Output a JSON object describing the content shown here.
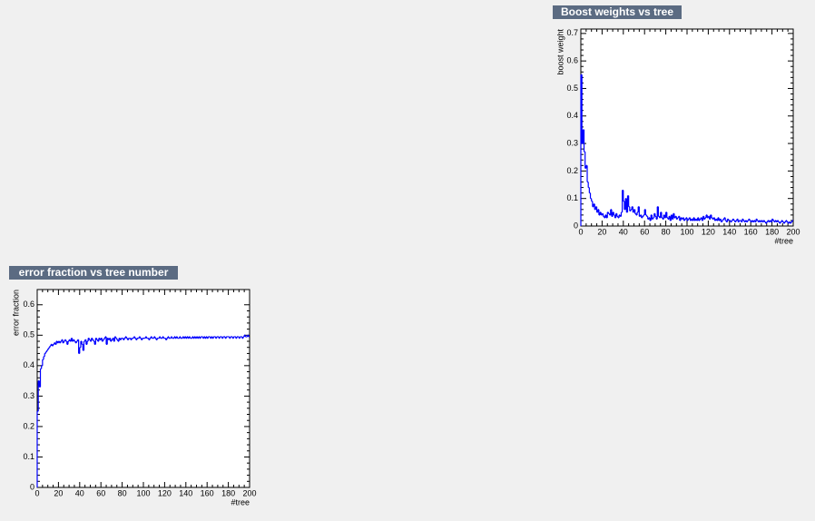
{
  "chart_data": [
    {
      "type": "step",
      "title": "Boost weights vs tree",
      "x_label": "#tree",
      "y_label": "boost weight",
      "color": "#0000ff",
      "xlim": [
        0,
        200
      ],
      "xticks": [
        0,
        20,
        40,
        60,
        80,
        100,
        120,
        140,
        160,
        180,
        200
      ],
      "ylim": [
        0,
        0.716
      ],
      "yticks": [
        0,
        0.1,
        0.2,
        0.3,
        0.4,
        0.5,
        0.6,
        0.7
      ],
      "grid": false,
      "values": [
        0.55,
        0.3,
        0.35,
        0.27,
        0.21,
        0.22,
        0.16,
        0.14,
        0.12,
        0.1,
        0.09,
        0.07,
        0.08,
        0.06,
        0.07,
        0.05,
        0.06,
        0.04,
        0.05,
        0.04,
        0.045,
        0.035,
        0.03,
        0.04,
        0.03,
        0.05,
        0.045,
        0.04,
        0.06,
        0.035,
        0.05,
        0.04,
        0.03,
        0.045,
        0.035,
        0.03,
        0.04,
        0.035,
        0.05,
        0.13,
        0.09,
        0.06,
        0.1,
        0.05,
        0.11,
        0.07,
        0.055,
        0.06,
        0.07,
        0.05,
        0.06,
        0.045,
        0.04,
        0.05,
        0.07,
        0.035,
        0.04,
        0.03,
        0.035,
        0.04,
        0.06,
        0.04,
        0.035,
        0.025,
        0.03,
        0.02,
        0.04,
        0.025,
        0.03,
        0.045,
        0.035,
        0.025,
        0.07,
        0.035,
        0.03,
        0.05,
        0.03,
        0.025,
        0.04,
        0.03,
        0.05,
        0.03,
        0.025,
        0.035,
        0.02,
        0.04,
        0.025,
        0.045,
        0.03,
        0.035,
        0.025,
        0.03,
        0.035,
        0.02,
        0.03,
        0.025,
        0.03,
        0.02,
        0.025,
        0.03,
        0.02,
        0.025,
        0.03,
        0.02,
        0.025,
        0.02,
        0.03,
        0.02,
        0.025,
        0.02,
        0.03,
        0.02,
        0.025,
        0.03,
        0.02,
        0.035,
        0.025,
        0.03,
        0.04,
        0.03,
        0.035,
        0.025,
        0.04,
        0.03,
        0.025,
        0.03,
        0.02,
        0.025,
        0.02,
        0.03,
        0.02,
        0.025,
        0.015,
        0.02,
        0.025,
        0.03,
        0.02,
        0.015,
        0.025,
        0.02,
        0.02,
        0.015,
        0.02,
        0.025,
        0.02,
        0.015,
        0.02,
        0.025,
        0.015,
        0.02,
        0.02,
        0.015,
        0.025,
        0.02,
        0.015,
        0.02,
        0.015,
        0.02,
        0.025,
        0.02,
        0.015,
        0.02,
        0.015,
        0.02,
        0.015,
        0.025,
        0.02,
        0.015,
        0.02,
        0.015,
        0.02,
        0.015,
        0.02,
        0.015,
        0.01,
        0.015,
        0.02,
        0.015,
        0.02,
        0.015,
        0.025,
        0.02,
        0.015,
        0.02,
        0.015,
        0.02,
        0.015,
        0.01,
        0.015,
        0.02,
        0.015,
        0.01,
        0.015,
        0.02,
        0.015,
        0.01,
        0.015,
        0.01,
        0.015,
        0.02
      ]
    },
    {
      "type": "step",
      "title": "error fraction vs tree number",
      "x_label": "#tree",
      "y_label": "error fraction",
      "color": "#0000ff",
      "xlim": [
        0,
        200
      ],
      "xticks": [
        0,
        20,
        40,
        60,
        80,
        100,
        120,
        140,
        160,
        180,
        200
      ],
      "ylim": [
        0,
        0.65
      ],
      "yticks": [
        0,
        0.1,
        0.2,
        0.3,
        0.4,
        0.5,
        0.6
      ],
      "grid": false,
      "values": [
        0.25,
        0.35,
        0.33,
        0.39,
        0.4,
        0.42,
        0.43,
        0.44,
        0.445,
        0.45,
        0.455,
        0.46,
        0.465,
        0.47,
        0.465,
        0.47,
        0.475,
        0.47,
        0.48,
        0.475,
        0.48,
        0.475,
        0.48,
        0.485,
        0.475,
        0.48,
        0.485,
        0.48,
        0.47,
        0.48,
        0.485,
        0.48,
        0.49,
        0.48,
        0.485,
        0.48,
        0.475,
        0.48,
        0.485,
        0.44,
        0.46,
        0.48,
        0.47,
        0.45,
        0.48,
        0.485,
        0.47,
        0.48,
        0.49,
        0.485,
        0.48,
        0.49,
        0.485,
        0.48,
        0.47,
        0.49,
        0.485,
        0.48,
        0.49,
        0.485,
        0.49,
        0.48,
        0.485,
        0.49,
        0.495,
        0.47,
        0.49,
        0.485,
        0.49,
        0.48,
        0.485,
        0.49,
        0.48,
        0.495,
        0.49,
        0.485,
        0.48,
        0.49,
        0.485,
        0.49,
        0.49,
        0.485,
        0.49,
        0.495,
        0.49,
        0.485,
        0.49,
        0.49,
        0.485,
        0.49,
        0.49,
        0.495,
        0.49,
        0.485,
        0.49,
        0.49,
        0.495,
        0.49,
        0.485,
        0.49,
        0.49,
        0.49,
        0.495,
        0.49,
        0.49,
        0.485,
        0.49,
        0.495,
        0.49,
        0.49,
        0.495,
        0.49,
        0.485,
        0.49,
        0.49,
        0.495,
        0.49,
        0.49,
        0.495,
        0.49,
        0.49,
        0.485,
        0.49,
        0.495,
        0.49,
        0.49,
        0.495,
        0.49,
        0.49,
        0.495,
        0.49,
        0.495,
        0.49,
        0.49,
        0.495,
        0.49,
        0.49,
        0.495,
        0.49,
        0.495,
        0.49,
        0.495,
        0.49,
        0.495,
        0.49,
        0.49,
        0.495,
        0.49,
        0.495,
        0.49,
        0.495,
        0.49,
        0.495,
        0.49,
        0.495,
        0.495,
        0.49,
        0.495,
        0.49,
        0.495,
        0.49,
        0.495,
        0.495,
        0.49,
        0.495,
        0.49,
        0.495,
        0.495,
        0.49,
        0.495,
        0.495,
        0.49,
        0.495,
        0.495,
        0.49,
        0.495,
        0.495,
        0.49,
        0.495,
        0.495,
        0.495,
        0.49,
        0.495,
        0.495,
        0.49,
        0.495,
        0.495,
        0.49,
        0.495,
        0.495,
        0.49,
        0.495,
        0.495,
        0.49,
        0.495,
        0.5,
        0.495,
        0.495,
        0.5,
        0.495
      ]
    }
  ]
}
